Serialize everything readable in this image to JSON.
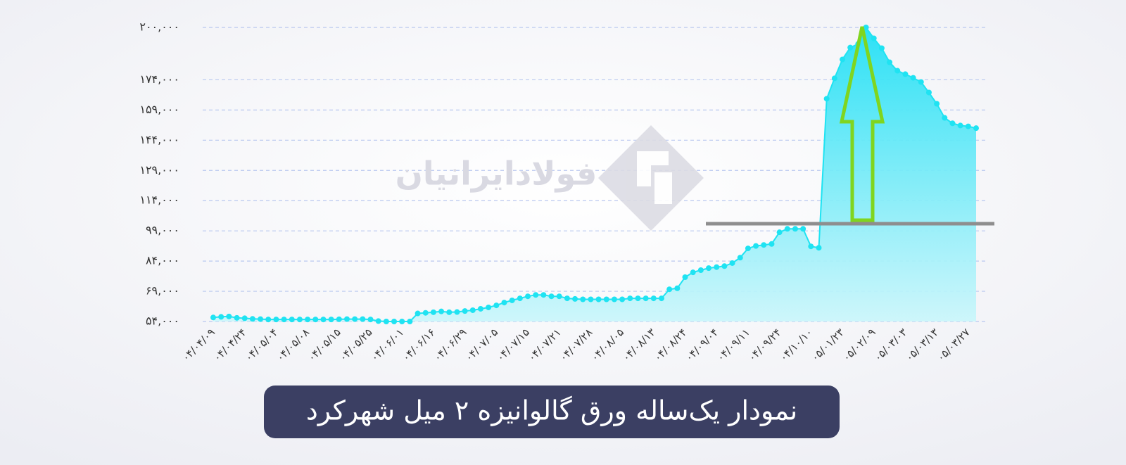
{
  "chart_data": {
    "type": "area",
    "title": "نمودار یک‌ساله ورق گالوانیزه ۲ میل شهرکرد",
    "watermark": "فولادایرانیان",
    "color": "#1fe3f2",
    "grid": true,
    "ylim": [
      54000,
      200000
    ],
    "yticks": [
      {
        "value": 54000,
        "label": "۵۴,۰۰۰"
      },
      {
        "value": 69000,
        "label": "۶۹,۰۰۰"
      },
      {
        "value": 84000,
        "label": "۸۴,۰۰۰"
      },
      {
        "value": 99000,
        "label": "۹۹,۰۰۰"
      },
      {
        "value": 114000,
        "label": "۱۱۴,۰۰۰"
      },
      {
        "value": 129000,
        "label": "۱۲۹,۰۰۰"
      },
      {
        "value": 144000,
        "label": "۱۴۴,۰۰۰"
      },
      {
        "value": 159000,
        "label": "۱۵۹,۰۰۰"
      },
      {
        "value": 174000,
        "label": "۱۷۴,۰۰۰"
      },
      {
        "value": 200000,
        "label": "۲۰۰,۰۰۰"
      }
    ],
    "categories": [
      "۰۴/۰۴/۰۹",
      null,
      null,
      null,
      "۰۴/۰۴/۲۴",
      null,
      null,
      null,
      "۰۴/۰۵/۰۴",
      null,
      null,
      null,
      "۰۴/۰۵/۰۸",
      null,
      null,
      null,
      "۰۴/۰۵/۱۵",
      null,
      null,
      null,
      "۰۴/۰۵/۲۵",
      null,
      null,
      null,
      "۰۴/۰۶/۰۱",
      null,
      null,
      null,
      "۰۴/۰۶/۱۶",
      null,
      null,
      null,
      "۰۴/۰۶/۲۹",
      null,
      null,
      null,
      "۰۴/۰۷/۰۵",
      null,
      null,
      null,
      "۰۴/۰۷/۱۵",
      null,
      null,
      null,
      "۰۴/۰۷/۲۱",
      null,
      null,
      null,
      "۰۴/۰۷/۲۸",
      null,
      null,
      null,
      "۰۴/۰۸/۰۵",
      null,
      null,
      null,
      "۰۴/۰۸/۱۳",
      null,
      null,
      null,
      "۰۴/۰۸/۲۴",
      null,
      null,
      null,
      "۰۴/۰۹/۰۴",
      null,
      null,
      null,
      "۰۴/۰۹/۱۱",
      null,
      null,
      null,
      "۰۴/۰۹/۲۴",
      null,
      null,
      null,
      "۰۴/۱۰/۱۰",
      null,
      null,
      null,
      "۰۵/۰۱/۲۳",
      null,
      null,
      null,
      "۰۵/۰۲/۰۹",
      null,
      null,
      null,
      "۰۵/۰۳/۰۳",
      null,
      null,
      null,
      "۰۵/۰۳/۱۳",
      null,
      null,
      null,
      "۰۵/۰۳/۲۷",
      null
    ],
    "values": [
      56000,
      56300,
      56500,
      55800,
      55600,
      55300,
      55200,
      55000,
      55000,
      55000,
      55000,
      55000,
      55000,
      55000,
      55000,
      55000,
      55100,
      55200,
      55200,
      55200,
      55000,
      54200,
      54000,
      54000,
      54000,
      54000,
      58000,
      58300,
      58600,
      59000,
      58600,
      58700,
      59200,
      59600,
      60300,
      61000,
      62000,
      63400,
      64500,
      65500,
      66500,
      67200,
      67200,
      66500,
      66500,
      65500,
      65200,
      65000,
      65000,
      65000,
      65000,
      65000,
      65000,
      65500,
      65500,
      65500,
      65500,
      65500,
      70000,
      70500,
      76000,
      78400,
      79500,
      80500,
      81000,
      81500,
      83000,
      85700,
      90300,
      91500,
      92000,
      92500,
      98300,
      100000,
      100000,
      100000,
      91300,
      90600,
      164600,
      174700,
      184100,
      190000,
      191800,
      200000,
      194600,
      189700,
      182700,
      178500,
      176800,
      175000,
      172900,
      167700,
      162100,
      155100,
      152400,
      151300,
      150900,
      150000
    ]
  }
}
